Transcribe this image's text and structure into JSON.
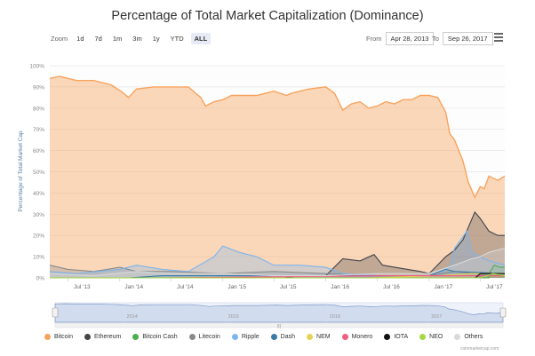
{
  "title": "Percentage of Total Market Capitalization (Dominance)",
  "zoom": {
    "label": "Zoom",
    "buttons": [
      "1d",
      "7d",
      "1m",
      "3m",
      "1y",
      "YTD",
      "ALL"
    ],
    "active": "ALL"
  },
  "range": {
    "from_label": "From",
    "from_value": "Apr 28, 2013",
    "to_label": "To",
    "to_value": "Sep 26, 2017"
  },
  "credit": "coinmarketcap.com",
  "navigator": {
    "labels": [
      "2014",
      "2015",
      "2016",
      "2017"
    ]
  },
  "chart_data": {
    "type": "area",
    "title": "Percentage of Total Market Capitalization (Dominance)",
    "ylabel": "Percentage of Total Market Cap",
    "xlabel": "",
    "ylim": [
      0,
      100
    ],
    "y_ticks": [
      "0%",
      "10%",
      "20%",
      "30%",
      "40%",
      "50%",
      "60%",
      "70%",
      "80%",
      "90%",
      "100%"
    ],
    "x_ticks": [
      "Jul '13",
      "Jan '14",
      "Jul '14",
      "Jan '15",
      "Jul '15",
      "Jan '16",
      "Jul '16",
      "Jan '17",
      "Jul '17"
    ],
    "x_range": [
      "2013-04-28",
      "2017-09-26"
    ],
    "grid": true,
    "legend_position": "bottom",
    "series": [
      {
        "name": "Bitcoin",
        "color": "#f7a35c",
        "points": [
          [
            "2013-04-28",
            94
          ],
          [
            "2013-06-01",
            95
          ],
          [
            "2013-08-01",
            93
          ],
          [
            "2013-10-01",
            93
          ],
          [
            "2013-12-01",
            91
          ],
          [
            "2014-01-05",
            88
          ],
          [
            "2014-02-01",
            85
          ],
          [
            "2014-03-01",
            89
          ],
          [
            "2014-05-01",
            90
          ],
          [
            "2014-07-01",
            90
          ],
          [
            "2014-09-01",
            90
          ],
          [
            "2014-10-15",
            85
          ],
          [
            "2014-11-01",
            81
          ],
          [
            "2014-12-01",
            83
          ],
          [
            "2015-01-01",
            84
          ],
          [
            "2015-02-01",
            86
          ],
          [
            "2015-03-01",
            86
          ],
          [
            "2015-05-01",
            86
          ],
          [
            "2015-07-01",
            88
          ],
          [
            "2015-08-15",
            86
          ],
          [
            "2015-09-01",
            87
          ],
          [
            "2015-11-01",
            89
          ],
          [
            "2016-01-01",
            90
          ],
          [
            "2016-02-01",
            87
          ],
          [
            "2016-03-01",
            79
          ],
          [
            "2016-04-01",
            82
          ],
          [
            "2016-05-01",
            83
          ],
          [
            "2016-06-01",
            80
          ],
          [
            "2016-07-01",
            81
          ],
          [
            "2016-08-01",
            83
          ],
          [
            "2016-09-01",
            82
          ],
          [
            "2016-10-01",
            84
          ],
          [
            "2016-11-01",
            84
          ],
          [
            "2016-12-01",
            86
          ],
          [
            "2017-01-01",
            86
          ],
          [
            "2017-02-01",
            85
          ],
          [
            "2017-03-01",
            78
          ],
          [
            "2017-03-15",
            68
          ],
          [
            "2017-04-01",
            65
          ],
          [
            "2017-05-01",
            55
          ],
          [
            "2017-05-20",
            45
          ],
          [
            "2017-06-12",
            38
          ],
          [
            "2017-07-01",
            43
          ],
          [
            "2017-07-15",
            42
          ],
          [
            "2017-08-01",
            48
          ],
          [
            "2017-09-01",
            46
          ],
          [
            "2017-09-26",
            48
          ]
        ]
      },
      {
        "name": "Ethereum",
        "color": "#434348",
        "points": [
          [
            "2013-04-28",
            0
          ],
          [
            "2015-08-07",
            0
          ],
          [
            "2015-10-01",
            1
          ],
          [
            "2016-01-01",
            1
          ],
          [
            "2016-03-01",
            9
          ],
          [
            "2016-05-01",
            8
          ],
          [
            "2016-06-20",
            11
          ],
          [
            "2016-07-20",
            6
          ],
          [
            "2016-09-01",
            5
          ],
          [
            "2016-12-01",
            3
          ],
          [
            "2017-01-01",
            2
          ],
          [
            "2017-03-01",
            10
          ],
          [
            "2017-04-01",
            13
          ],
          [
            "2017-05-01",
            18
          ],
          [
            "2017-06-12",
            31
          ],
          [
            "2017-07-01",
            28
          ],
          [
            "2017-08-01",
            22
          ],
          [
            "2017-09-01",
            20
          ],
          [
            "2017-09-26",
            20
          ]
        ]
      },
      {
        "name": "Bitcoin Cash",
        "color": "#4caf50",
        "points": [
          [
            "2013-04-28",
            0
          ],
          [
            "2017-08-01",
            0
          ],
          [
            "2017-08-05",
            3
          ],
          [
            "2017-08-20",
            6
          ],
          [
            "2017-09-10",
            5
          ],
          [
            "2017-09-26",
            5
          ]
        ]
      },
      {
        "name": "Litecoin",
        "color": "#8a8a8a",
        "points": [
          [
            "2013-04-28",
            6
          ],
          [
            "2013-07-01",
            4
          ],
          [
            "2013-10-01",
            3
          ],
          [
            "2014-01-01",
            5
          ],
          [
            "2014-03-01",
            3
          ],
          [
            "2014-07-01",
            3
          ],
          [
            "2015-01-01",
            2
          ],
          [
            "2015-07-01",
            3
          ],
          [
            "2016-01-01",
            2
          ],
          [
            "2016-07-01",
            1
          ],
          [
            "2017-01-01",
            1
          ],
          [
            "2017-04-01",
            3
          ],
          [
            "2017-06-01",
            2
          ],
          [
            "2017-09-01",
            2
          ],
          [
            "2017-09-26",
            2
          ]
        ]
      },
      {
        "name": "Ripple",
        "color": "#7cb5ec",
        "points": [
          [
            "2013-04-28",
            3
          ],
          [
            "2013-08-01",
            2
          ],
          [
            "2014-01-01",
            4
          ],
          [
            "2014-03-01",
            6
          ],
          [
            "2014-06-01",
            4
          ],
          [
            "2014-09-01",
            3
          ],
          [
            "2014-12-01",
            10
          ],
          [
            "2015-01-01",
            15
          ],
          [
            "2015-03-01",
            12
          ],
          [
            "2015-05-01",
            10
          ],
          [
            "2015-07-01",
            6
          ],
          [
            "2015-10-01",
            6
          ],
          [
            "2016-01-01",
            5
          ],
          [
            "2016-03-01",
            2
          ],
          [
            "2016-07-01",
            1
          ],
          [
            "2017-01-01",
            1
          ],
          [
            "2017-03-15",
            5
          ],
          [
            "2017-04-01",
            14
          ],
          [
            "2017-05-15",
            22
          ],
          [
            "2017-06-01",
            12
          ],
          [
            "2017-07-01",
            10
          ],
          [
            "2017-08-01",
            8
          ],
          [
            "2017-09-01",
            7
          ],
          [
            "2017-09-26",
            6
          ]
        ]
      },
      {
        "name": "Dash",
        "color": "#3a7ca5",
        "points": [
          [
            "2013-04-28",
            0
          ],
          [
            "2014-02-01",
            0
          ],
          [
            "2014-06-01",
            1
          ],
          [
            "2016-01-01",
            1
          ],
          [
            "2017-01-01",
            1
          ],
          [
            "2017-03-01",
            4
          ],
          [
            "2017-04-01",
            3
          ],
          [
            "2017-09-26",
            2
          ]
        ]
      },
      {
        "name": "NEM",
        "color": "#e4d354",
        "points": [
          [
            "2013-04-28",
            0
          ],
          [
            "2015-04-01",
            0
          ],
          [
            "2016-06-01",
            0
          ],
          [
            "2017-02-01",
            1
          ],
          [
            "2017-06-01",
            2
          ],
          [
            "2017-09-26",
            2
          ]
        ]
      },
      {
        "name": "Monero",
        "color": "#f15c80",
        "points": [
          [
            "2013-04-28",
            0
          ],
          [
            "2014-06-01",
            0
          ],
          [
            "2016-08-01",
            1
          ],
          [
            "2017-09-26",
            1
          ]
        ]
      },
      {
        "name": "IOTA",
        "color": "#111111",
        "points": [
          [
            "2013-04-28",
            0
          ],
          [
            "2017-06-13",
            0
          ],
          [
            "2017-07-01",
            2
          ],
          [
            "2017-09-26",
            2
          ]
        ]
      },
      {
        "name": "NEO",
        "color": "#a6d843",
        "points": [
          [
            "2013-04-28",
            0
          ],
          [
            "2017-07-01",
            0
          ],
          [
            "2017-08-15",
            2
          ],
          [
            "2017-09-26",
            1
          ]
        ]
      },
      {
        "name": "Others",
        "color": "#d9d9d9",
        "points": [
          [
            "2013-04-28",
            2
          ],
          [
            "2013-10-01",
            1
          ],
          [
            "2014-03-01",
            3
          ],
          [
            "2014-07-01",
            2
          ],
          [
            "2015-01-01",
            2
          ],
          [
            "2015-07-01",
            1
          ],
          [
            "2016-01-01",
            1
          ],
          [
            "2016-07-01",
            2
          ],
          [
            "2017-01-01",
            2
          ],
          [
            "2017-04-01",
            6
          ],
          [
            "2017-06-01",
            9
          ],
          [
            "2017-07-01",
            10
          ],
          [
            "2017-08-01",
            12
          ],
          [
            "2017-09-26",
            14
          ]
        ]
      }
    ]
  }
}
